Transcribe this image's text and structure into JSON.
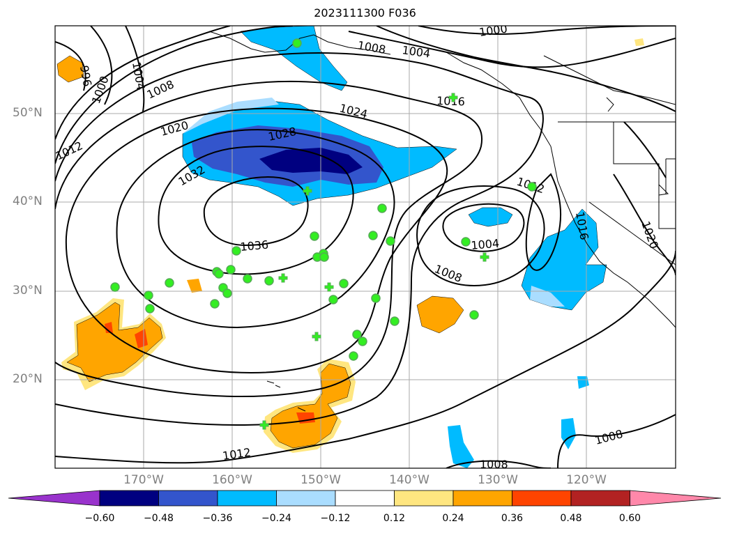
{
  "title": "2023111300 F036",
  "lat_labels": [
    "50°N",
    "40°N",
    "30°N",
    "20°N"
  ],
  "lon_labels": [
    "170°W",
    "160°W",
    "150°W",
    "140°W",
    "130°W",
    "120°W"
  ],
  "isobar_labels": [
    "1000",
    "1008",
    "1004",
    "996",
    "1000",
    "1004",
    "1008",
    "1016",
    "1024",
    "1020",
    "1028",
    "1012",
    "1032",
    "1012",
    "1036",
    "1004",
    "1008",
    "1016",
    "1020",
    "1012",
    "1008",
    "1008"
  ],
  "colorbar": {
    "ticks": [
      "−0.60",
      "−0.48",
      "−0.36",
      "−0.24",
      "−0.12",
      "0.12",
      "0.24",
      "0.36",
      "0.48",
      "0.60"
    ],
    "colors": [
      "#9933cc",
      "#000080",
      "#3355cc",
      "#00bbff",
      "#aaddff",
      "#ffffff",
      "#ffe680",
      "#ffa500",
      "#ff4400",
      "#b22222",
      "#ff88aa"
    ]
  },
  "colors": {
    "dark_blue": "#000080",
    "mid_blue": "#3355cc",
    "cyan": "#00bbff",
    "light_blue": "#aaddff",
    "yellow": "#ffe680",
    "orange": "#ffa500",
    "red": "#ff4400",
    "marker_green": "#33ee22"
  }
}
